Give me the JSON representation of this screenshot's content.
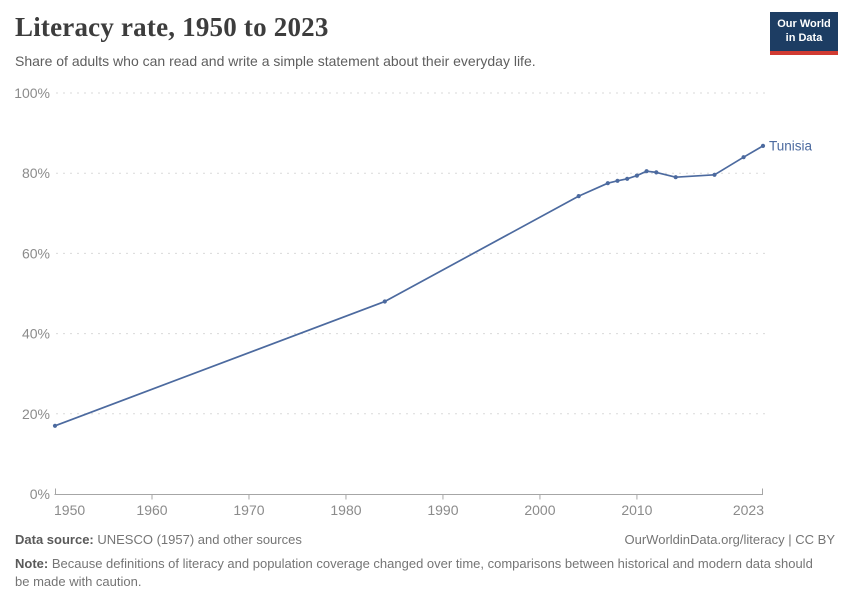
{
  "header": {
    "title": "Literacy rate, 1950 to 2023",
    "subtitle": "Share of adults who can read and write a simple statement about their everyday life.",
    "logo": {
      "line1": "Our World",
      "line2": "in Data"
    }
  },
  "chart_data": {
    "type": "line",
    "title": "Literacy rate, 1950 to 2023",
    "x": [
      1950,
      1984,
      2004,
      2007,
      2008,
      2009,
      2010,
      2011,
      2012,
      2014,
      2018,
      2021,
      2023
    ],
    "series": [
      {
        "name": "Tunisia",
        "values": [
          17,
          48,
          74.3,
          77.5,
          78.1,
          78.6,
          79.4,
          80.5,
          80.2,
          79.0,
          79.6,
          84.0,
          86.8
        ]
      }
    ],
    "xlim": [
      1950,
      2023
    ],
    "ylim": [
      0,
      100
    ],
    "yticks": [
      0,
      20,
      40,
      60,
      80,
      100
    ],
    "ytick_labels": [
      "0%",
      "20%",
      "40%",
      "60%",
      "80%",
      "100%"
    ],
    "xticks": [
      1950,
      1960,
      1970,
      1980,
      1990,
      2000,
      2010,
      2023
    ],
    "xtick_labels": [
      "1950",
      "1960",
      "1970",
      "1980",
      "1990",
      "2000",
      "2010",
      "2023"
    ],
    "grid": "horizontal dashed",
    "legend_position": "end-of-line label",
    "line_color": "#4C6A9F",
    "label_color": "#4C6A9F",
    "unit": "%"
  },
  "footer": {
    "datasource_label": "Data source:",
    "datasource_text": " UNESCO (1957) and other sources",
    "link": "OurWorldinData.org/literacy | CC BY",
    "note_label": "Note:",
    "note_text": " Because definitions of literacy and population coverage changed over time, comparisons between historical and modern data should be made with caution."
  }
}
